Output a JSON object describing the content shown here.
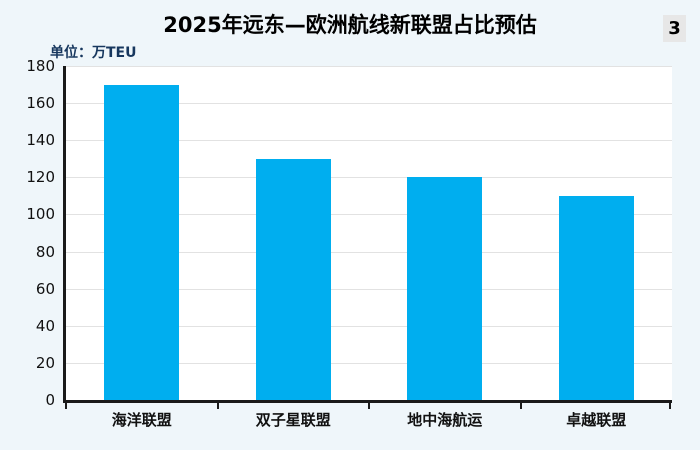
{
  "page": {
    "badge": "3"
  },
  "chart_data": {
    "type": "bar",
    "title": "2025年远东—欧洲航线新联盟占比预估",
    "unit_label": "单位：万TEU",
    "categories": [
      "海洋联盟",
      "双子星联盟",
      "地中海航运",
      "卓越联盟"
    ],
    "values": [
      170,
      130,
      120,
      110
    ],
    "xlabel": "",
    "ylabel": "万TEU",
    "ylim": [
      0,
      180
    ],
    "ytick_step": 20,
    "yticks": [
      0,
      20,
      40,
      60,
      80,
      100,
      120,
      140,
      160,
      180
    ],
    "grid": true,
    "legend": "none",
    "colors": {
      "bar": "#00AEEF",
      "background": "#EFF6FA",
      "plot_background": "#FFFFFF",
      "axis": "#1A1A1A",
      "gridline": "#E2E2E2",
      "title_text": "#000000",
      "unit_label_text": "#17375E",
      "badge_background": "#E7E7E7"
    }
  }
}
